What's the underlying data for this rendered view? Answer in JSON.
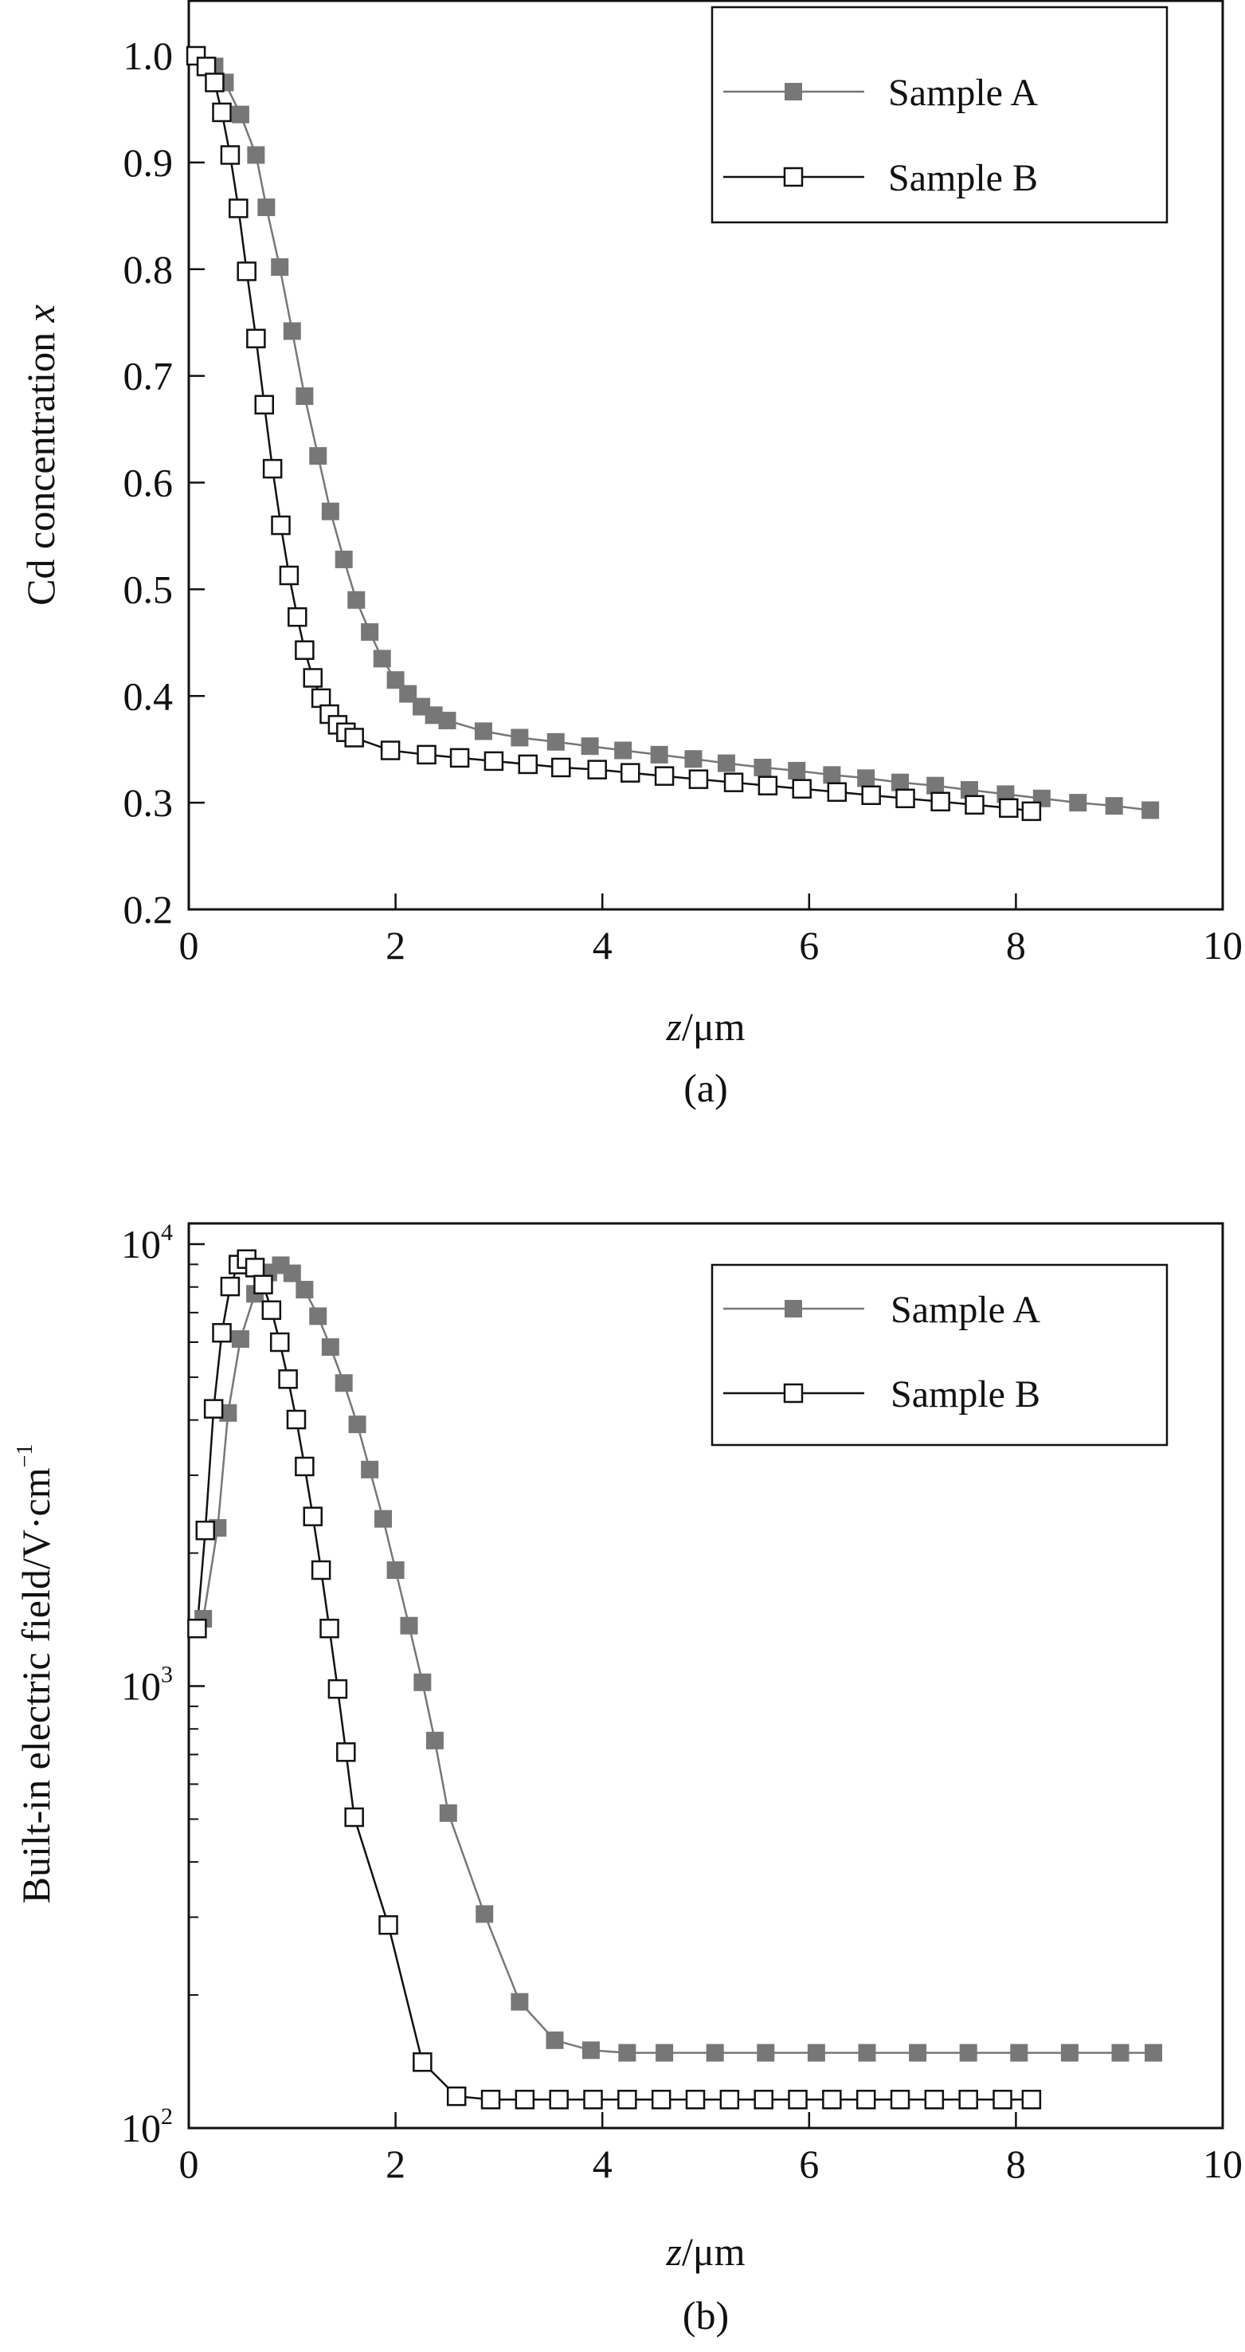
{
  "colors": {
    "sample_a": "#777777",
    "sample_b": "#111111",
    "axis": "#111111"
  },
  "chart_data": [
    {
      "type": "line",
      "panel_label": "(a)",
      "xlabel_italic": "z",
      "xlabel_unit": "/μm",
      "ylabel": "Cd concentration ",
      "ylabel_italic": "x",
      "xlim": [
        0,
        10
      ],
      "ylim": [
        0.2,
        1.05
      ],
      "yscale": "linear",
      "xticks": [
        0,
        2,
        4,
        6,
        8,
        10
      ],
      "xtick_labels": [
        "0",
        "2",
        "4",
        "6",
        "8",
        "10"
      ],
      "yticks": [
        0.2,
        0.3,
        0.4,
        0.5,
        0.6,
        0.7,
        0.8,
        0.9,
        1.0
      ],
      "ytick_labels": [
        "0.2",
        "0.3",
        "0.4",
        "0.5",
        "0.6",
        "0.7",
        "0.8",
        "0.9",
        "1.0"
      ],
      "legend_position": "top-right",
      "series": [
        {
          "name": "Sample A",
          "marker": "filled-square",
          "x": [
            0.25,
            0.35,
            0.5,
            0.65,
            0.75,
            0.88,
            1.0,
            1.12,
            1.25,
            1.37,
            1.5,
            1.62,
            1.75,
            1.87,
            2.0,
            2.12,
            2.25,
            2.37,
            2.5,
            2.85,
            3.2,
            3.55,
            3.88,
            4.2,
            4.55,
            4.88,
            5.2,
            5.55,
            5.88,
            6.22,
            6.55,
            6.88,
            7.22,
            7.55,
            7.9,
            8.25,
            8.6,
            8.95,
            9.3
          ],
          "y": [
            0.99,
            0.975,
            0.945,
            0.907,
            0.858,
            0.802,
            0.742,
            0.681,
            0.625,
            0.573,
            0.528,
            0.49,
            0.46,
            0.435,
            0.415,
            0.402,
            0.39,
            0.382,
            0.377,
            0.367,
            0.361,
            0.357,
            0.353,
            0.349,
            0.345,
            0.341,
            0.337,
            0.333,
            0.33,
            0.326,
            0.323,
            0.319,
            0.316,
            0.312,
            0.308,
            0.304,
            0.3,
            0.297,
            0.293
          ]
        },
        {
          "name": "Sample B",
          "marker": "open-square",
          "x": [
            0.07,
            0.17,
            0.25,
            0.32,
            0.4,
            0.48,
            0.56,
            0.65,
            0.73,
            0.81,
            0.89,
            0.97,
            1.05,
            1.12,
            1.2,
            1.28,
            1.36,
            1.44,
            1.52,
            1.6,
            1.95,
            2.3,
            2.62,
            2.95,
            3.28,
            3.6,
            3.95,
            4.27,
            4.6,
            4.93,
            5.27,
            5.6,
            5.93,
            6.27,
            6.6,
            6.93,
            7.27,
            7.6,
            7.93,
            8.15
          ],
          "y": [
            1.0,
            0.99,
            0.975,
            0.947,
            0.907,
            0.857,
            0.798,
            0.735,
            0.673,
            0.613,
            0.56,
            0.513,
            0.474,
            0.443,
            0.417,
            0.398,
            0.383,
            0.373,
            0.366,
            0.361,
            0.349,
            0.345,
            0.342,
            0.339,
            0.336,
            0.333,
            0.331,
            0.328,
            0.325,
            0.322,
            0.319,
            0.316,
            0.313,
            0.31,
            0.307,
            0.304,
            0.301,
            0.298,
            0.295,
            0.292
          ]
        }
      ]
    },
    {
      "type": "line",
      "panel_label": "(b)",
      "xlabel_italic": "z",
      "xlabel_unit": "/μm",
      "ylabel": "Built-in electric field/V·cm",
      "ylabel_sup": "−1",
      "xlim": [
        0,
        10
      ],
      "ylim": [
        100,
        11000
      ],
      "yscale": "log",
      "xticks": [
        0,
        2,
        4,
        6,
        8,
        10
      ],
      "xtick_labels": [
        "0",
        "2",
        "4",
        "6",
        "8",
        "10"
      ],
      "yticks": [
        100,
        1000,
        10000
      ],
      "ytick_bases": [
        "10",
        "10",
        "10"
      ],
      "ytick_exps": [
        "2",
        "3",
        "4"
      ],
      "legend_position": "top-right",
      "series": [
        {
          "name": "Sample A",
          "marker": "filled-square",
          "x": [
            0.14,
            0.28,
            0.38,
            0.5,
            0.64,
            0.77,
            0.89,
            1.0,
            1.12,
            1.25,
            1.37,
            1.5,
            1.63,
            1.75,
            1.88,
            2.0,
            2.13,
            2.26,
            2.38,
            2.51,
            2.86,
            3.2,
            3.54,
            3.89,
            4.24,
            4.6,
            5.09,
            5.58,
            6.07,
            6.56,
            7.05,
            7.54,
            8.03,
            8.52,
            9.01,
            9.33
          ],
          "y": [
            1420,
            2280,
            4150,
            6100,
            7720,
            8630,
            8960,
            8590,
            7890,
            6870,
            5850,
            4850,
            3910,
            3090,
            2390,
            1830,
            1370,
            1020,
            753,
            516,
            305,
            193,
            158,
            150,
            148,
            148,
            148,
            148,
            148,
            148,
            148,
            148,
            148,
            148,
            148,
            148
          ]
        },
        {
          "name": "Sample B",
          "marker": "open-square",
          "x": [
            0.08,
            0.16,
            0.24,
            0.32,
            0.4,
            0.48,
            0.56,
            0.64,
            0.72,
            0.8,
            0.88,
            0.96,
            1.04,
            1.12,
            1.2,
            1.28,
            1.36,
            1.44,
            1.52,
            1.6,
            1.93,
            2.26,
            2.59,
            2.92,
            3.25,
            3.58,
            3.91,
            4.24,
            4.57,
            4.9,
            5.23,
            5.56,
            5.89,
            6.22,
            6.55,
            6.88,
            7.21,
            7.54,
            7.87,
            8.15
          ],
          "y": [
            1350,
            2250,
            4240,
            6300,
            8020,
            8990,
            9250,
            8850,
            8100,
            7090,
            6000,
            4950,
            4010,
            3140,
            2420,
            1830,
            1350,
            985,
            709,
            505,
            288,
            141,
            118,
            116,
            116,
            116,
            116,
            116,
            116,
            116,
            116,
            116,
            116,
            116,
            116,
            116,
            116,
            116,
            116,
            116
          ]
        }
      ]
    }
  ]
}
